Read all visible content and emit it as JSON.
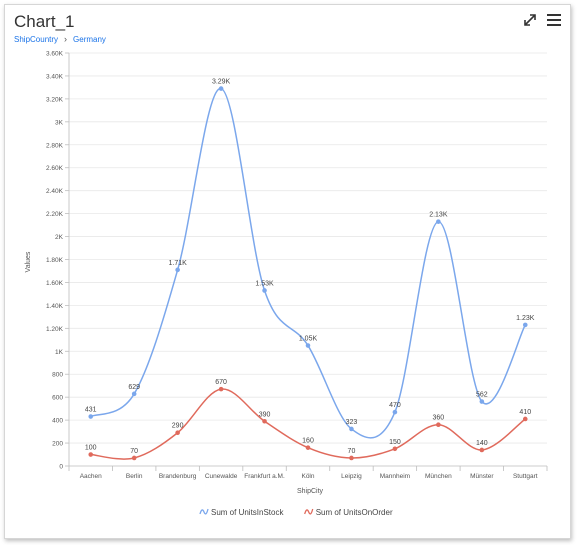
{
  "header": {
    "title": "Chart_1",
    "breadcrumb": [
      "ShipCountry",
      "Germany"
    ],
    "breadcrumb_separator": "›",
    "expand_icon": "expand-arrows-icon",
    "menu_icon": "hamburger-menu-icon"
  },
  "colors": {
    "series1": "#7ba7ec",
    "series2": "#e06a5c",
    "grid": "#e8e8e8",
    "axis": "#bdbdbd",
    "text": "#555555",
    "link": "#1a73e8"
  },
  "chart_data": {
    "type": "line",
    "title": "",
    "xlabel": "ShipCity",
    "ylabel": "Values",
    "ylim": [
      0,
      3600
    ],
    "grid": true,
    "legend_position": "bottom",
    "categories": [
      "Aachen",
      "Berlin",
      "Brandenburg",
      "Cunewalde",
      "Frankfurt a.M.",
      "Köln",
      "Leipzig",
      "Mannheim",
      "München",
      "Münster",
      "Stuttgart"
    ],
    "yticks": [
      {
        "value": 0,
        "label": "0"
      },
      {
        "value": 200,
        "label": "200"
      },
      {
        "value": 400,
        "label": "400"
      },
      {
        "value": 600,
        "label": "600"
      },
      {
        "value": 800,
        "label": "800"
      },
      {
        "value": 1000,
        "label": "1K"
      },
      {
        "value": 1200,
        "label": "1.20K"
      },
      {
        "value": 1400,
        "label": "1.40K"
      },
      {
        "value": 1600,
        "label": "1.60K"
      },
      {
        "value": 1800,
        "label": "1.80K"
      },
      {
        "value": 2000,
        "label": "2K"
      },
      {
        "value": 2200,
        "label": "2.20K"
      },
      {
        "value": 2400,
        "label": "2.40K"
      },
      {
        "value": 2600,
        "label": "2.60K"
      },
      {
        "value": 2800,
        "label": "2.80K"
      },
      {
        "value": 3000,
        "label": "3K"
      },
      {
        "value": 3200,
        "label": "3.20K"
      },
      {
        "value": 3400,
        "label": "3.40K"
      },
      {
        "value": 3600,
        "label": "3.60K"
      }
    ],
    "series": [
      {
        "name": "Sum of UnitsInStock",
        "values": [
          431,
          629,
          1710,
          3290,
          1530,
          1050,
          323,
          470,
          2130,
          562,
          1230
        ],
        "labels": [
          "431",
          "629",
          "1.71K",
          "3.29K",
          "1.53K",
          "1.05K",
          "323",
          "470",
          "2.13K",
          "562",
          "1.23K"
        ]
      },
      {
        "name": "Sum of UnitsOnOrder",
        "values": [
          100,
          70,
          290,
          670,
          390,
          160,
          70,
          150,
          360,
          140,
          410
        ],
        "labels": [
          "100",
          "70",
          "290",
          "670",
          "390",
          "160",
          "70",
          "150",
          "360",
          "140",
          "410"
        ]
      }
    ]
  }
}
